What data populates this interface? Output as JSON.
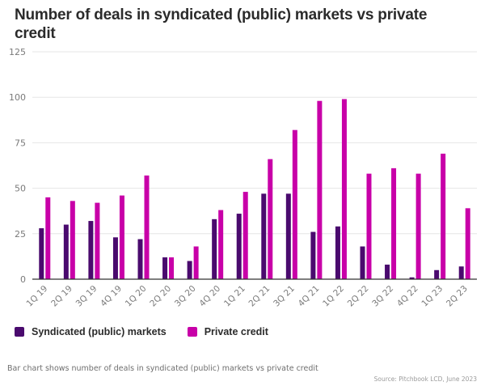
{
  "chart_data": {
    "type": "bar",
    "title": "Number of deals in syndicated (public) markets vs private credit",
    "xlabel": "",
    "ylabel": "",
    "ylim": [
      0,
      125
    ],
    "yticks": [
      0,
      25,
      50,
      75,
      100,
      125
    ],
    "grid": true,
    "legend_position": "bottom-left",
    "categories": [
      "1Q 19",
      "2Q 19",
      "3Q 19",
      "4Q 19",
      "1Q 20",
      "2Q 20",
      "3Q 20",
      "4Q 20",
      "1Q 21",
      "2Q 21",
      "3Q 21",
      "4Q 21",
      "1Q 22",
      "2Q 22",
      "3Q 22",
      "4Q 22",
      "1Q 23",
      "2Q 23"
    ],
    "series": [
      {
        "name": "Syndicated (public) markets",
        "color": "#4a0a6e",
        "values": [
          28,
          30,
          32,
          23,
          22,
          12,
          10,
          33,
          36,
          47,
          47,
          26,
          29,
          18,
          8,
          1,
          5,
          7
        ]
      },
      {
        "name": "Private credit",
        "color": "#c800a8",
        "values": [
          45,
          43,
          42,
          46,
          57,
          12,
          18,
          38,
          48,
          66,
          82,
          98,
          99,
          58,
          61,
          58,
          69,
          39
        ]
      }
    ],
    "caption": "Bar chart shows number of deals in syndicated (public) markets vs private credit",
    "source": "Source: Pitchbook LCD, June 2023"
  }
}
